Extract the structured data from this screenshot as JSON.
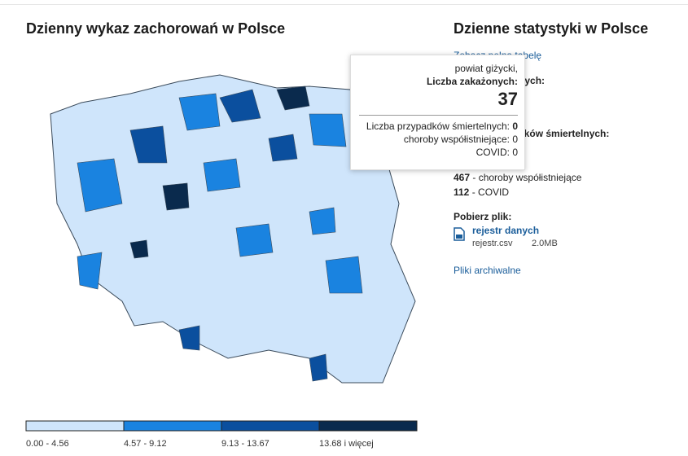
{
  "map_title": "Dzienny wykaz zachorowań w Polsce",
  "stats": {
    "title": "Dzienne statystyki w Polsce",
    "table_link": "Zobacz pełną tabelę",
    "infected_label": "Liczba zakażonych:",
    "deaths_label": "Liczba przypadków śmiertelnych:",
    "items": [
      {
        "value": 467,
        "label": "- choroby współistniejące"
      },
      {
        "value": 112,
        "label": "- COVID"
      }
    ],
    "download_label": "Pobierz plik:",
    "file_title": "rejestr danych",
    "file_name": "rejestr.csv",
    "file_size": "2.0MB",
    "archive_link": "Pliki archiwalne"
  },
  "tooltip": {
    "region": "powiat giżycki,",
    "infected_label": "Liczba zakażonych:",
    "infected": 37,
    "deaths_label": "Liczba przypadków śmiertelnych:",
    "deaths": 0,
    "comorbid_label": "choroby współistniejące:",
    "comorbid": 0,
    "covid_label": "COVID:",
    "covid": 0
  },
  "legend": [
    {
      "label": "0.00 - 4.56",
      "color": "#cfe5fb"
    },
    {
      "label": "4.57 - 9.12",
      "color": "#1a83e0"
    },
    {
      "label": "9.13 - 13.67",
      "color": "#0b4f9e"
    },
    {
      "label": "13.68 i więcej",
      "color": "#0a2a4d"
    }
  ]
}
